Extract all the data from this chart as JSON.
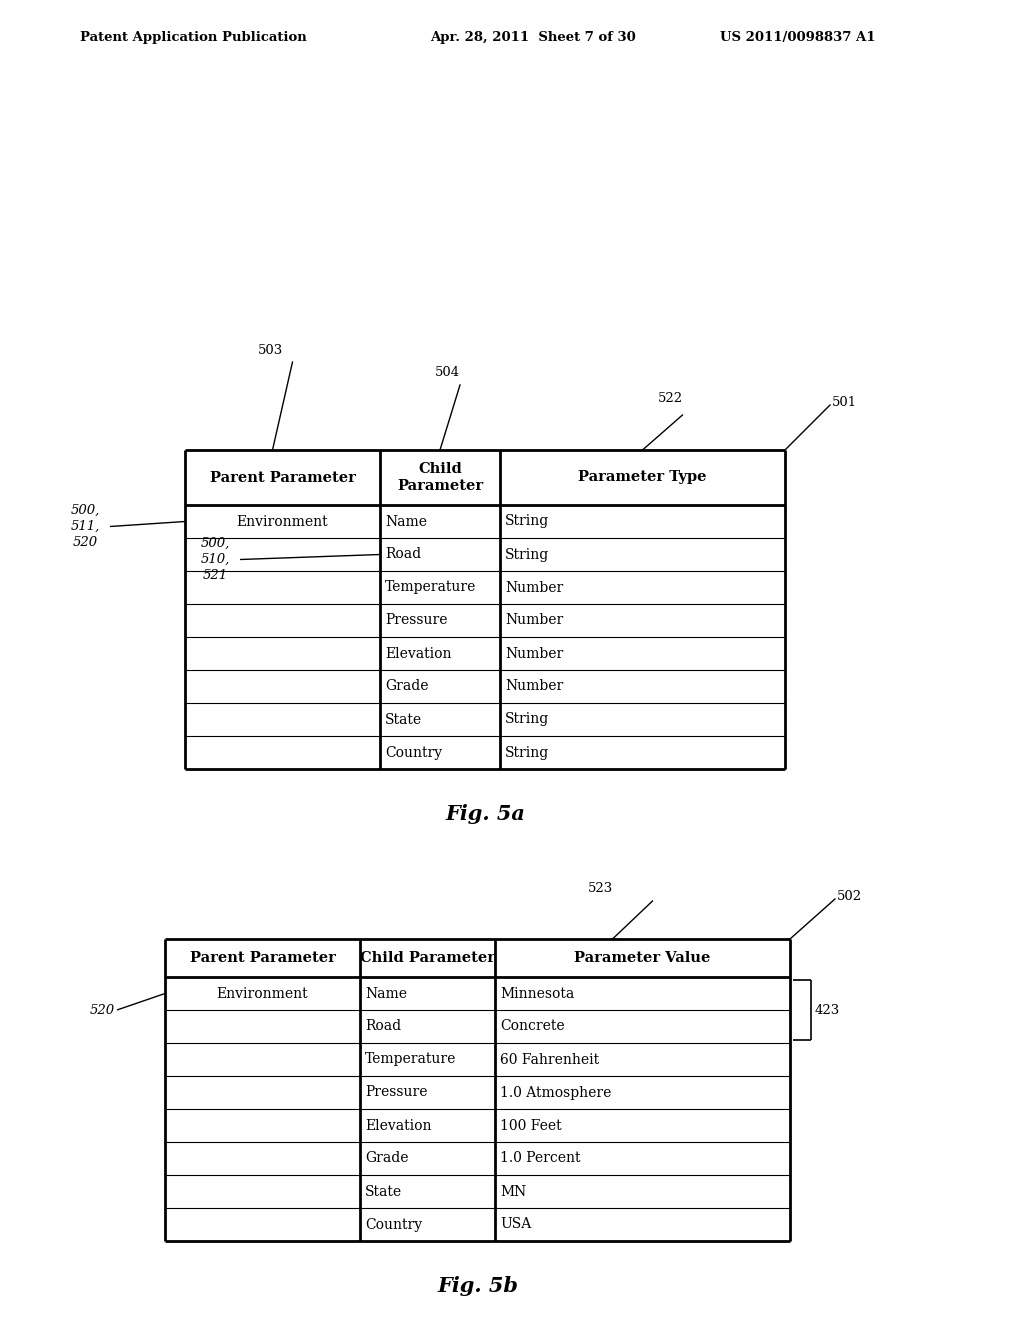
{
  "header_left": "Patent Application Publication",
  "header_mid": "Apr. 28, 2011  Sheet 7 of 30",
  "header_right": "US 2011/0098837 A1",
  "fig5a_caption": "Fig. 5a",
  "fig5b_caption": "Fig. 5b",
  "table1": {
    "col_headers": [
      "Parent Parameter",
      "Child\nParameter",
      "Parameter Type"
    ],
    "rows": [
      [
        "Environment",
        "Name",
        "String"
      ],
      [
        "",
        "Road",
        "String"
      ],
      [
        "",
        "Temperature",
        "Number"
      ],
      [
        "",
        "Pressure",
        "Number"
      ],
      [
        "",
        "Elevation",
        "Number"
      ],
      [
        "",
        "Grade",
        "Number"
      ],
      [
        "",
        "State",
        "String"
      ],
      [
        "",
        "Country",
        "String"
      ]
    ]
  },
  "table2": {
    "col_headers": [
      "Parent Parameter",
      "Child Parameter",
      "Parameter Value"
    ],
    "rows": [
      [
        "Environment",
        "Name",
        "Minnesota"
      ],
      [
        "",
        "Road",
        "Concrete"
      ],
      [
        "",
        "Temperature",
        "60 Fahrenheit"
      ],
      [
        "",
        "Pressure",
        "1.0 Atmosphere"
      ],
      [
        "",
        "Elevation",
        "100 Feet"
      ],
      [
        "",
        "Grade",
        "1.0 Percent"
      ],
      [
        "",
        "State",
        "MN"
      ],
      [
        "",
        "Country",
        "USA"
      ]
    ]
  },
  "bg_color": "#ffffff"
}
